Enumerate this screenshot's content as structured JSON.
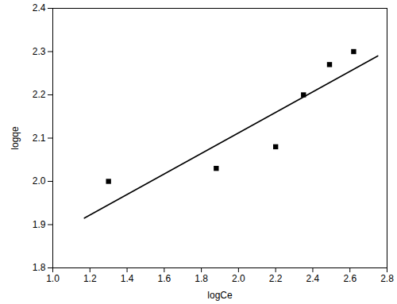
{
  "chart_data": {
    "type": "scatter",
    "x_label": "logCe",
    "y_label": "logqe",
    "xlim": [
      1.0,
      2.8
    ],
    "ylim": [
      1.8,
      2.4
    ],
    "xticks": [
      {
        "value": 1.0,
        "label": "1.0"
      },
      1.2,
      1.4,
      1.6,
      1.8,
      {
        "value": 2.0,
        "label": "2.0"
      },
      2.2,
      2.4,
      2.6,
      2.8
    ],
    "yticks": [
      1.8,
      1.9,
      {
        "value": 2.0,
        "label": "2.0"
      },
      2.1,
      2.2,
      2.3,
      2.4
    ],
    "grid": false,
    "series": [
      {
        "type": "scatter",
        "marker": "square",
        "color": "#000000",
        "x": [
          1.3,
          1.88,
          2.2,
          2.35,
          2.49,
          2.62
        ],
        "values": [
          2.0,
          2.03,
          2.08,
          2.2,
          2.27,
          2.3
        ]
      },
      {
        "type": "line",
        "line_style": "solid",
        "color": "#000000",
        "x": [
          1.17,
          2.75
        ],
        "values": [
          1.915,
          2.29
        ]
      }
    ]
  }
}
